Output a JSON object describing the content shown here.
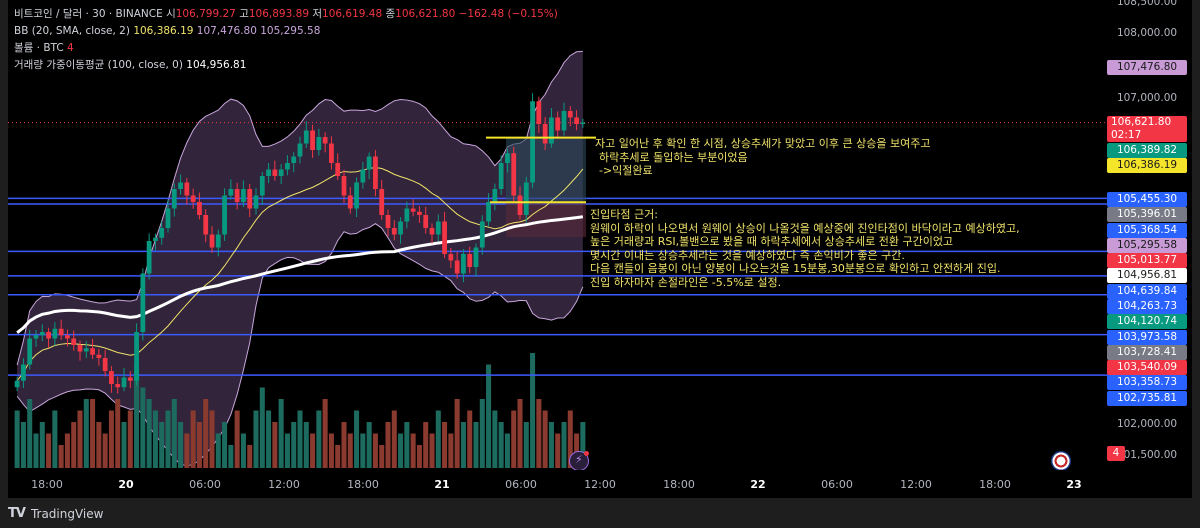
{
  "legend": {
    "symbol": "비트코인 / 달러 · 30 · BINANCE",
    "open_label": "시",
    "open": "106,799.27",
    "high_label": "고",
    "high": "106,893.89",
    "low_label": "저",
    "low": "106,619.48",
    "close_label": "종",
    "close": "106,621.80",
    "change": "−162.48 (−0.15%)",
    "bb_label": "BB (20, SMA, close, 2)",
    "bb_basis": "106,386.19",
    "bb_upper": "107,476.80",
    "bb_lower": "105,295.58",
    "volume_label": "볼륨 · BTC",
    "volume": "4",
    "vwma_label": "거래량 가중이동평균 (100, close, 0)",
    "vwma": "104,956.81"
  },
  "price_axis": {
    "ticks": [
      "108,500.00",
      "108,000.00",
      "107,000.00",
      "102,000.00",
      "101,500.00"
    ],
    "labels": [
      {
        "text": "107,476.80",
        "bg": "#c89ad6",
        "fg": "#1a1a1a"
      },
      {
        "text": "106,621.80",
        "sub": "02:17",
        "bg": "#f23645",
        "fg": "#ffffff"
      },
      {
        "text": "106,389.82",
        "bg": "#089981",
        "fg": "#ffffff"
      },
      {
        "text": "106,386.19",
        "bg": "#f5e52a",
        "fg": "#1a1a1a"
      },
      {
        "text": "105,455.30",
        "bg": "#2962ff",
        "fg": "#ffffff"
      },
      {
        "text": "105,396.01",
        "bg": "#787b86",
        "fg": "#ffffff"
      },
      {
        "text": "105,368.54",
        "bg": "#2962ff",
        "fg": "#ffffff"
      },
      {
        "text": "105,295.58",
        "bg": "#c89ad6",
        "fg": "#1a1a1a"
      },
      {
        "text": "105,013.77",
        "bg": "#f23645",
        "fg": "#ffffff"
      },
      {
        "text": "104,956.81",
        "bg": "#ffffff",
        "fg": "#1a1a1a"
      },
      {
        "text": "104,639.84",
        "bg": "#2962ff",
        "fg": "#ffffff"
      },
      {
        "text": "104,263.73",
        "bg": "#2962ff",
        "fg": "#ffffff"
      },
      {
        "text": "104,120.74",
        "bg": "#089981",
        "fg": "#ffffff"
      },
      {
        "text": "103,973.58",
        "bg": "#2962ff",
        "fg": "#ffffff"
      },
      {
        "text": "103,728.41",
        "bg": "#787b86",
        "fg": "#ffffff"
      },
      {
        "text": "103,540.09",
        "bg": "#f23645",
        "fg": "#ffffff"
      },
      {
        "text": "103,358.73",
        "bg": "#2962ff",
        "fg": "#ffffff"
      },
      {
        "text": "102,735.81",
        "bg": "#2962ff",
        "fg": "#ffffff"
      }
    ],
    "volume_badge": "4"
  },
  "time_axis": [
    {
      "text": "18:00",
      "bold": false
    },
    {
      "text": "20",
      "bold": true
    },
    {
      "text": "06:00",
      "bold": false
    },
    {
      "text": "12:00",
      "bold": false
    },
    {
      "text": "18:00",
      "bold": false
    },
    {
      "text": "21",
      "bold": true
    },
    {
      "text": "06:00",
      "bold": false
    },
    {
      "text": "12:00",
      "bold": false
    },
    {
      "text": "18:00",
      "bold": false
    },
    {
      "text": "22",
      "bold": true
    },
    {
      "text": "06:00",
      "bold": false
    },
    {
      "text": "12:00",
      "bold": false
    },
    {
      "text": "18:00",
      "bold": false
    },
    {
      "text": "23",
      "bold": true
    }
  ],
  "notes": {
    "exit": [
      "자고 일어난 후 확인 한 시점, 상승추세가 맞았고 이후 큰 상승을 보여주고",
      "하락추세로 돌입하는 부분이었음",
      "->익절완료"
    ],
    "entry": [
      "진입타점 근거:",
      "원웨이 하락이 나오면서 원웨이 상승이 나올것을 예상중에 진인타점이 바닥이라고 예상하였고,",
      "높은 거래량과 RSI,볼밴으로 봤을 때 하락추세에서 상승추세로 전환 구간이었고",
      "몇시간 이내는 상승추세라는 것을 예상하였다 즉 손익비가 좋은 구간.",
      "다음 캔들이 음봉이 아닌 양봉이 나오는것을 15분봉,30분봉으로 확인하고 안전하게 진입.",
      "진입 하자마자 손절라인은 -5.5%로 설정."
    ]
  },
  "horizontal_levels": [
    105455.3,
    105368.54,
    104639.84,
    104263.73,
    103973.58,
    103358.73,
    102735.81
  ],
  "position": {
    "entry": 105396.01,
    "target": 106389.82,
    "stop": 105013.77
  },
  "colors": {
    "up": "#089981",
    "down": "#f23645",
    "vol_up": "#1d6b5f",
    "vol_down": "#8a3a2e",
    "bb_fill": "#3a2a45",
    "bb_line": "#c9a6dc",
    "basis": "#f0e36a",
    "vwma": "#ffffff",
    "level": "#3d5afe",
    "annotation": "#f5e52a"
  },
  "candles_close": [
    102650,
    102900,
    103300,
    103350,
    103400,
    103300,
    103450,
    103350,
    103300,
    103200,
    103100,
    103150,
    103050,
    103000,
    102800,
    102600,
    102550,
    102700,
    102650,
    103400,
    104300,
    104800,
    104850,
    105000,
    105300,
    105600,
    105700,
    105500,
    105400,
    105200,
    104900,
    104700,
    104900,
    105500,
    105600,
    105400,
    105600,
    105300,
    105500,
    105800,
    105900,
    105800,
    105900,
    106000,
    106100,
    106300,
    106500,
    106200,
    106400,
    106300,
    106000,
    105800,
    105500,
    105300,
    105700,
    105900,
    106100,
    105600,
    105200,
    105000,
    104900,
    105100,
    105300,
    105250,
    105200,
    105000,
    104900,
    105100,
    104600,
    104500,
    104300,
    104600,
    104400,
    104700,
    105100,
    105400,
    105600,
    106000,
    106150,
    105500,
    105200,
    105700,
    106950,
    106600,
    106300,
    106700,
    106500,
    106800,
    106700,
    106600,
    106621.8
  ],
  "volumes": [
    5,
    4,
    6,
    3,
    4,
    3,
    5,
    2,
    3,
    4,
    5,
    6,
    6,
    4,
    3,
    5,
    6,
    4,
    5,
    9,
    7,
    6,
    5,
    4,
    5,
    6,
    4,
    3,
    5,
    4,
    6,
    5,
    3,
    4,
    2,
    5,
    3,
    2,
    5,
    7,
    5,
    4,
    6,
    3,
    4,
    5,
    4,
    3,
    5,
    6,
    3,
    2,
    4,
    3,
    5,
    3,
    4,
    3,
    2,
    4,
    5,
    3,
    4,
    3,
    2,
    4,
    3,
    5,
    4,
    3,
    6,
    4,
    5,
    4,
    6,
    9,
    5,
    4,
    3,
    5,
    6,
    4,
    10,
    6,
    5,
    4,
    3,
    4,
    5,
    3,
    4
  ],
  "footer": {
    "brand": "TradingView"
  }
}
